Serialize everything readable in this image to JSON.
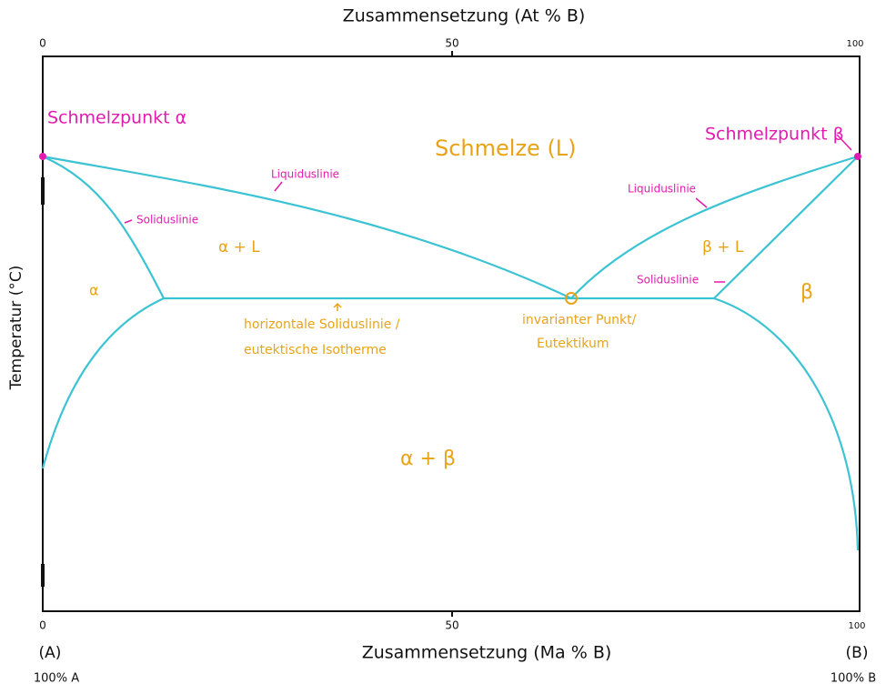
{
  "header": {
    "top_axis_title": "Zusammensetzung (At % B)",
    "bottom_axis_title": "Zusammensetzung (Ma % B)",
    "left_axis_title": "Temperatur (°C)"
  },
  "top_ticks": [
    "0",
    "50",
    "100"
  ],
  "bottom_ticks": [
    "0",
    "50",
    "100"
  ],
  "ends": {
    "left_label": "(A)",
    "left_sub": "100% A",
    "right_label": "(B)",
    "right_sub": "100% B"
  },
  "labels": {
    "melt_point_a": "Schmelzpunkt α",
    "melt_point_b": "Schmelzpunkt β",
    "melt": "Schmelze (L)",
    "liquidus_left": "Liquiduslinie",
    "liquidus_right": "Liquiduslinie",
    "solidus_left": "Soliduslinie",
    "solidus_right": "Soliduslinie",
    "alpha_l": "α + L",
    "beta_l": "β + L",
    "alpha": "α",
    "beta": "β",
    "alpha_beta": "α + β",
    "eutectic_line_1": "horizontale Soliduslinie /",
    "eutectic_line_2": "eutektische Isotherme",
    "eutectic_point_1": "invarianter Punkt/",
    "eutectic_point_2": "Eutektikum"
  }
}
